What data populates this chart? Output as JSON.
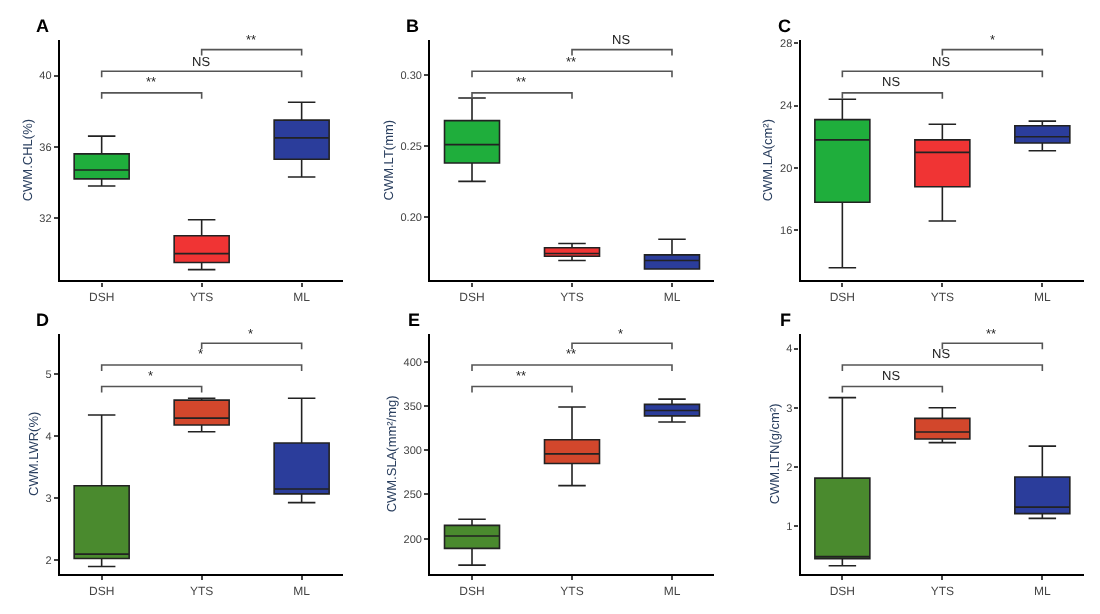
{
  "chart_data": [
    {
      "type": "box",
      "title": "A",
      "ylabel": "CWM.CHL(%)",
      "categories": [
        "DSH",
        "YTS",
        "ML"
      ],
      "colors": [
        "#1fae3c",
        "#f03434",
        "#2b3d9b"
      ],
      "ylim": [
        28.5,
        42
      ],
      "yticks": [
        32,
        36,
        40
      ],
      "legend": false,
      "boxes": [
        {
          "low": 33.8,
          "q1": 34.2,
          "median": 34.7,
          "q3": 35.6,
          "high": 36.6
        },
        {
          "low": 29.1,
          "q1": 29.5,
          "median": 30.0,
          "q3": 31.0,
          "high": 31.9
        },
        {
          "low": 34.3,
          "q1": 35.3,
          "median": 36.5,
          "q3": 37.5,
          "high": 38.5
        }
      ],
      "annotations": [
        "**",
        "NS",
        "**"
      ]
    },
    {
      "type": "box",
      "title": "B",
      "ylabel": "CWM.LT(mm)",
      "categories": [
        "DSH",
        "YTS",
        "ML"
      ],
      "colors": [
        "#1fae3c",
        "#f03434",
        "#2b3d9b"
      ],
      "ylim": [
        0.155,
        0.325
      ],
      "yticks": [
        {
          "value": 0.2,
          "label": "0.20"
        },
        {
          "value": 0.25,
          "label": "0.25"
        },
        {
          "value": 0.3,
          "label": "0.30"
        }
      ],
      "legend": false,
      "boxes": [
        {
          "low": 0.225,
          "q1": 0.238,
          "median": 0.251,
          "q3": 0.268,
          "high": 0.284
        },
        {
          "low": 0.169,
          "q1": 0.172,
          "median": 0.174,
          "q3": 0.178,
          "high": 0.181
        },
        {
          "low": 0.163,
          "q1": 0.163,
          "median": 0.169,
          "q3": 0.173,
          "high": 0.184
        }
      ],
      "annotations": [
        "**",
        "**",
        "NS"
      ]
    },
    {
      "type": "box",
      "title": "C",
      "ylabel": "CWM.LA(cm²)",
      "categories": [
        "DSH",
        "YTS",
        "ML"
      ],
      "colors": [
        "#1fae3c",
        "#f03434",
        "#2b3d9b"
      ],
      "ylim": [
        12.8,
        28.2
      ],
      "yticks": [
        16,
        20,
        24,
        28
      ],
      "legend": false,
      "boxes": [
        {
          "low": 13.6,
          "q1": 17.8,
          "median": 21.8,
          "q3": 23.1,
          "high": 24.4
        },
        {
          "low": 16.6,
          "q1": 18.8,
          "median": 21.0,
          "q3": 21.8,
          "high": 22.8
        },
        {
          "low": 21.1,
          "q1": 21.6,
          "median": 22.0,
          "q3": 22.7,
          "high": 23.0
        }
      ],
      "annotations": [
        "NS",
        "NS",
        "*"
      ]
    },
    {
      "type": "box",
      "title": "D",
      "ylabel": "CWM.LWR(%)",
      "categories": [
        "DSH",
        "YTS",
        "ML"
      ],
      "colors": [
        "#4a8a2e",
        "#d2472c",
        "#2b3d9b"
      ],
      "ylim": [
        1.78,
        5.65
      ],
      "yticks": [
        2,
        3,
        4,
        5
      ],
      "legend": false,
      "boxes": [
        {
          "low": 1.9,
          "q1": 2.03,
          "median": 2.1,
          "q3": 3.2,
          "high": 4.34
        },
        {
          "low": 4.07,
          "q1": 4.18,
          "median": 4.29,
          "q3": 4.58,
          "high": 4.61
        },
        {
          "low": 2.93,
          "q1": 3.07,
          "median": 3.15,
          "q3": 3.89,
          "high": 4.61
        }
      ],
      "annotations": [
        "*",
        "*",
        "*"
      ]
    },
    {
      "type": "box",
      "title": "E",
      "ylabel": "CWM.SLA(mm²/mg)",
      "categories": [
        "DSH",
        "YTS",
        "ML"
      ],
      "colors": [
        "#4a8a2e",
        "#d2472c",
        "#2b3d9b"
      ],
      "ylim": [
        160,
        432
      ],
      "yticks": [
        200,
        250,
        300,
        350,
        400
      ],
      "legend": false,
      "boxes": [
        {
          "low": 170,
          "q1": 189,
          "median": 203,
          "q3": 215,
          "high": 222
        },
        {
          "low": 260,
          "q1": 285,
          "median": 296,
          "q3": 312,
          "high": 349
        },
        {
          "low": 332,
          "q1": 339,
          "median": 345,
          "q3": 352,
          "high": 358
        }
      ],
      "annotations": [
        "**",
        "**",
        "*"
      ]
    },
    {
      "type": "box",
      "title": "F",
      "ylabel": "CWM.LTN(g/cm²)",
      "categories": [
        "DSH",
        "YTS",
        "ML"
      ],
      "colors": [
        "#4a8a2e",
        "#d2472c",
        "#2b3d9b"
      ],
      "ylim": [
        0.19,
        4.25
      ],
      "yticks": [
        1,
        2,
        3,
        4
      ],
      "legend": false,
      "boxes": [
        {
          "low": 0.33,
          "q1": 0.45,
          "median": 0.47,
          "q3": 1.81,
          "high": 3.17
        },
        {
          "low": 2.41,
          "q1": 2.47,
          "median": 2.59,
          "q3": 2.82,
          "high": 3.0
        },
        {
          "low": 1.13,
          "q1": 1.21,
          "median": 1.32,
          "q3": 1.83,
          "high": 2.35
        }
      ],
      "annotations": [
        "NS",
        "NS",
        "**"
      ]
    }
  ]
}
